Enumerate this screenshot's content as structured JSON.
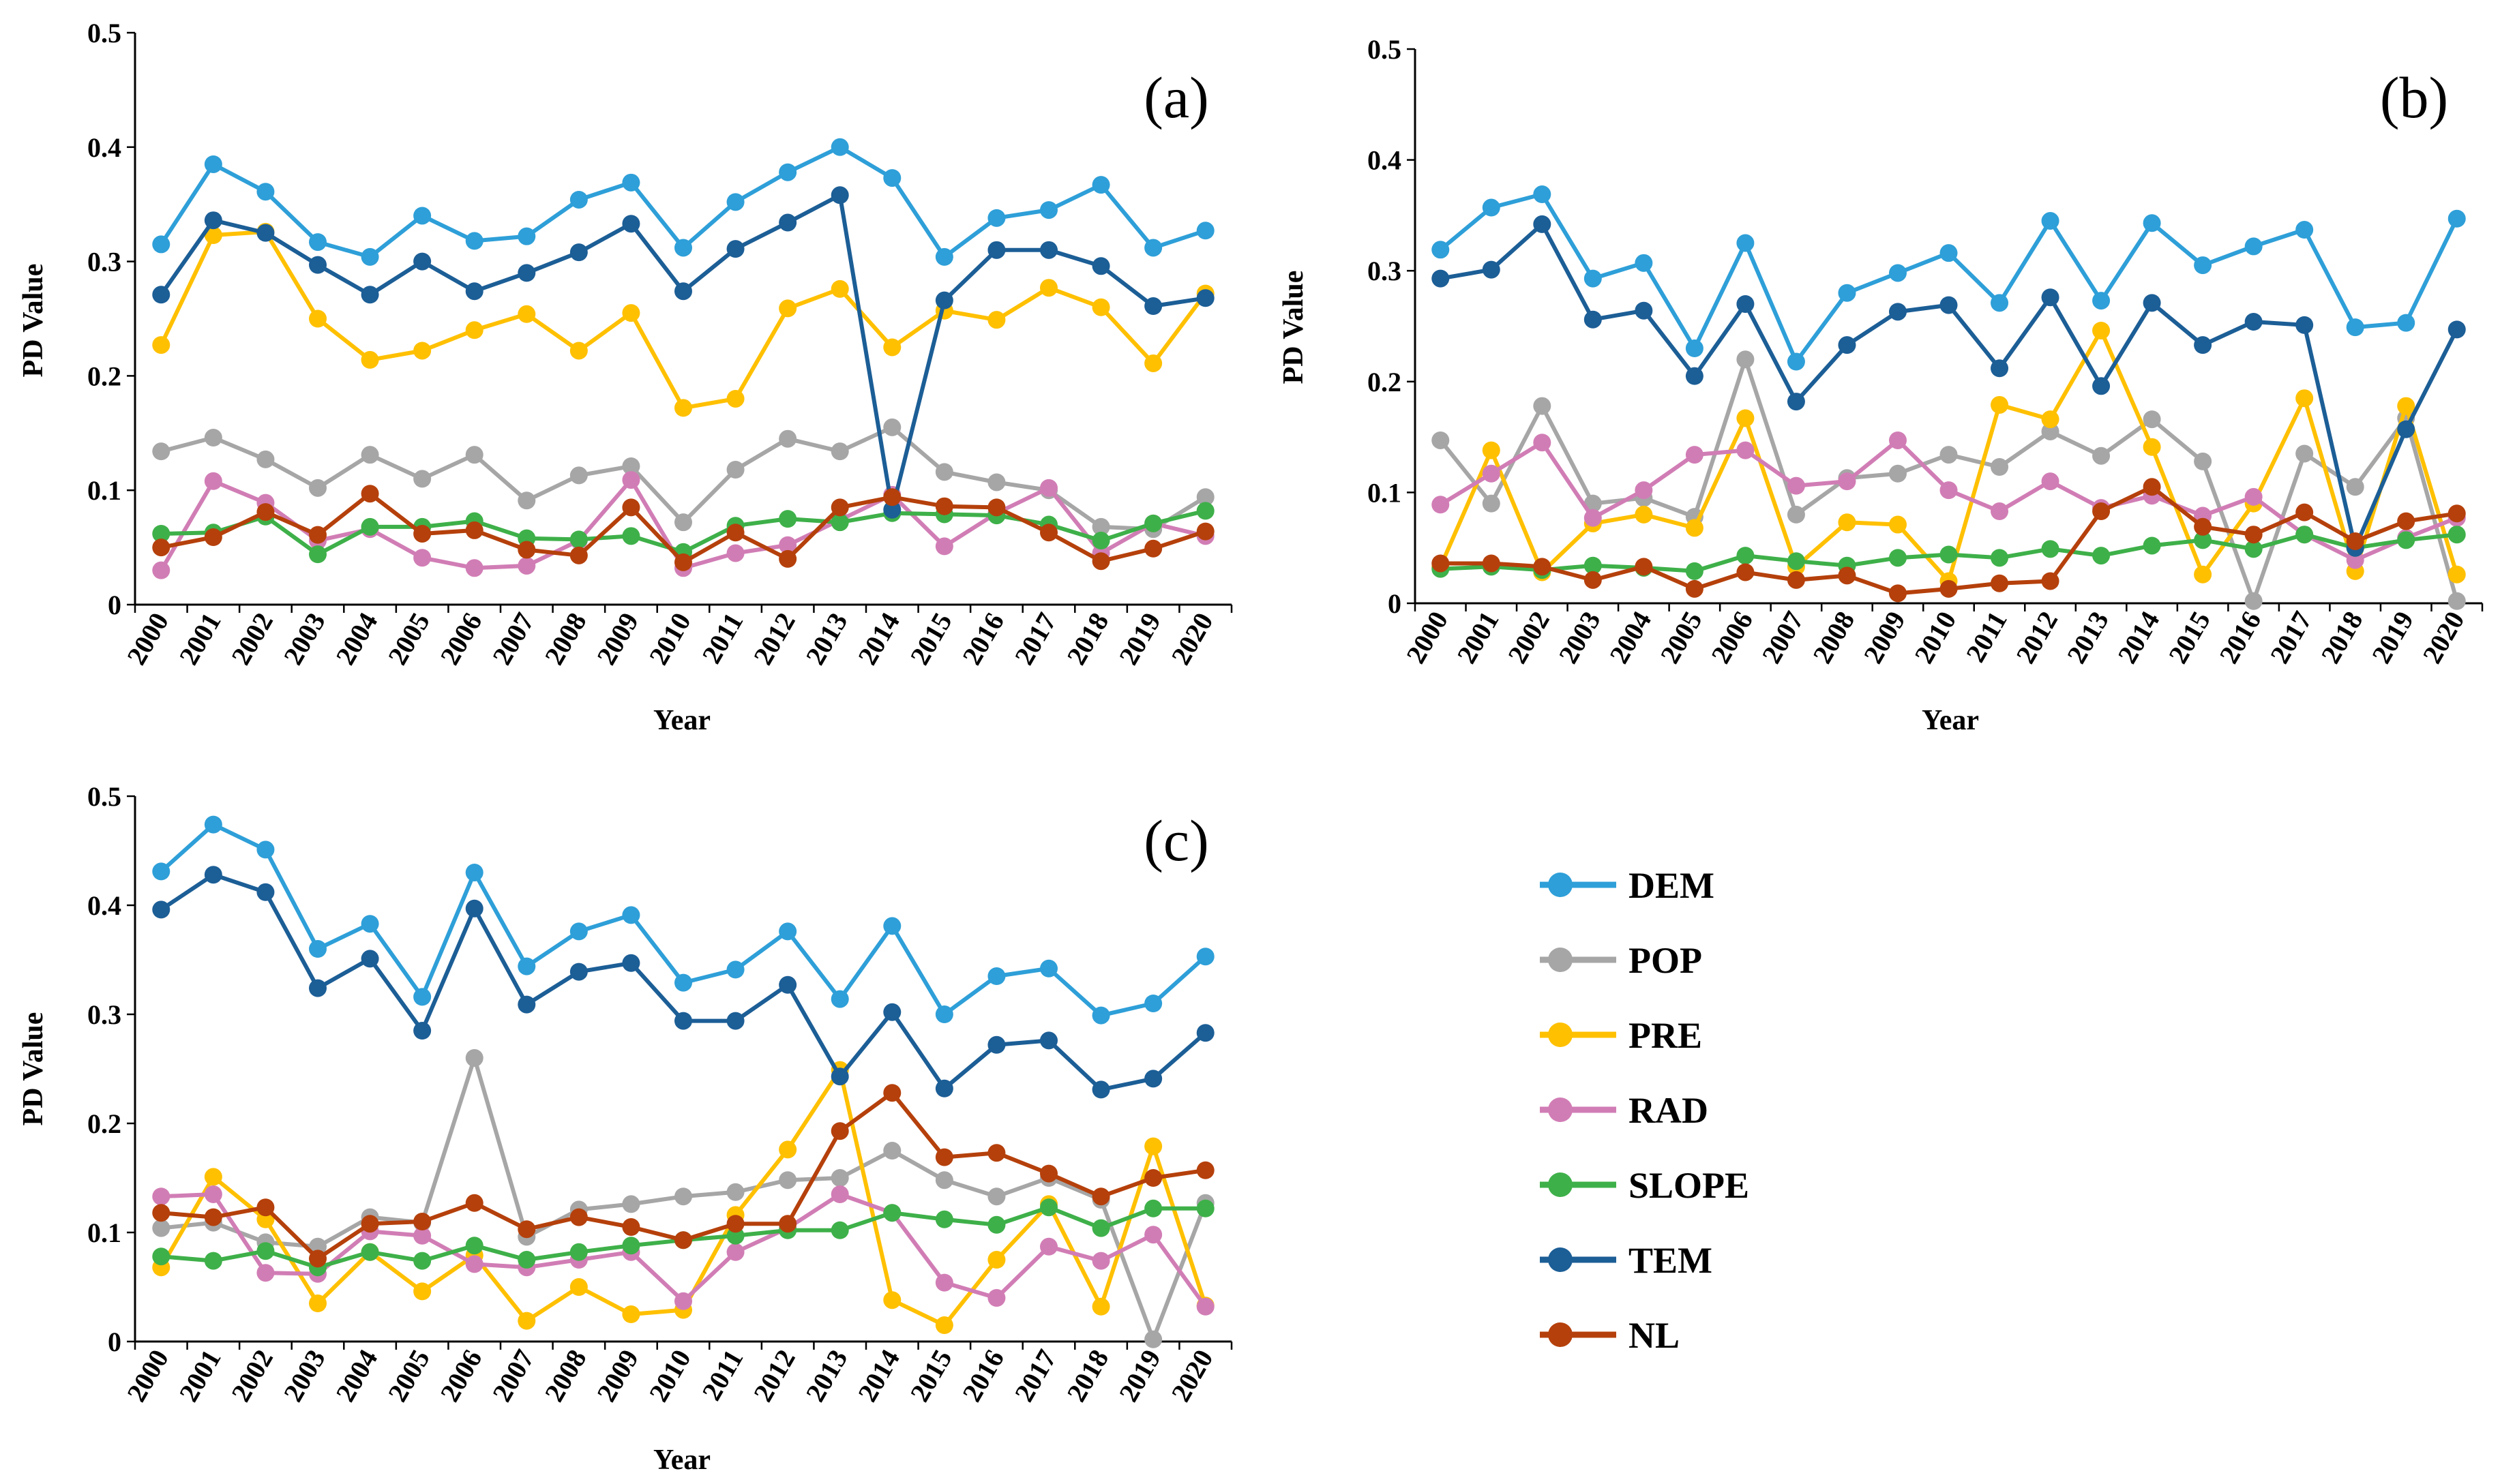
{
  "chart_data": [
    {
      "type": "line",
      "title": "(a)",
      "xlabel": "Year",
      "ylabel": "PD Value",
      "ylim": [
        0,
        0.5
      ],
      "yticks": [
        "0",
        "0.1",
        "0.2",
        "0.3",
        "0.4",
        "0.5"
      ],
      "categories": [
        "2000",
        "2001",
        "2002",
        "2003",
        "2004",
        "2005",
        "2006",
        "2007",
        "2008",
        "2009",
        "2010",
        "2011",
        "2012",
        "2013",
        "2014",
        "2015",
        "2016",
        "2017",
        "2018",
        "2019",
        "2020"
      ],
      "series": [
        {
          "name": "DEM",
          "color": "#2E9FD8",
          "values": [
            0.315,
            0.385,
            0.361,
            0.317,
            0.304,
            0.34,
            0.318,
            0.322,
            0.354,
            0.369,
            0.312,
            0.352,
            0.378,
            0.4,
            0.373,
            0.304,
            0.338,
            0.345,
            0.367,
            0.312,
            0.327
          ]
        },
        {
          "name": "POP",
          "color": "#A6A6A6",
          "values": [
            0.134,
            0.146,
            0.127,
            0.102,
            0.131,
            0.11,
            0.131,
            0.091,
            0.113,
            0.121,
            0.072,
            0.118,
            0.145,
            0.134,
            0.155,
            0.116,
            0.107,
            0.1,
            0.068,
            0.066,
            0.094
          ]
        },
        {
          "name": "PRE",
          "color": "#FFC000",
          "values": [
            0.227,
            0.323,
            0.326,
            0.25,
            0.214,
            0.222,
            0.24,
            0.254,
            0.222,
            0.255,
            0.172,
            0.18,
            0.259,
            0.276,
            0.225,
            0.257,
            0.249,
            0.277,
            0.26,
            0.211,
            0.272
          ]
        },
        {
          "name": "RAD",
          "color": "#D17DB5",
          "values": [
            0.03,
            0.108,
            0.089,
            0.056,
            0.066,
            0.041,
            0.032,
            0.034,
            0.056,
            0.109,
            0.032,
            0.045,
            0.052,
            0.074,
            0.096,
            0.051,
            0.08,
            0.102,
            0.045,
            0.071,
            0.06
          ]
        },
        {
          "name": "SLOPE",
          "color": "#3EB049",
          "values": [
            0.062,
            0.063,
            0.077,
            0.044,
            0.068,
            0.068,
            0.073,
            0.058,
            0.057,
            0.06,
            0.046,
            0.069,
            0.075,
            0.072,
            0.08,
            0.079,
            0.078,
            0.07,
            0.056,
            0.071,
            0.082
          ]
        },
        {
          "name": "TEM",
          "color": "#1C5E96",
          "values": [
            0.271,
            0.336,
            0.325,
            0.297,
            0.271,
            0.3,
            0.274,
            0.29,
            0.308,
            0.333,
            0.274,
            0.311,
            0.334,
            0.358,
            0.083,
            0.266,
            0.31,
            0.31,
            0.296,
            0.261,
            0.268
          ]
        },
        {
          "name": "NL",
          "color": "#B5400B",
          "values": [
            0.05,
            0.059,
            0.081,
            0.061,
            0.097,
            0.062,
            0.065,
            0.048,
            0.043,
            0.085,
            0.037,
            0.063,
            0.04,
            0.085,
            0.094,
            0.086,
            0.085,
            0.063,
            0.038,
            0.049,
            0.064
          ]
        }
      ]
    },
    {
      "type": "line",
      "title": "(b)",
      "xlabel": "Year",
      "ylabel": "PD Value",
      "ylim": [
        0,
        0.5
      ],
      "yticks": [
        "0",
        "0.1",
        "0.2",
        "0.3",
        "0.4",
        "0.5"
      ],
      "categories": [
        "2000",
        "2001",
        "2002",
        "2003",
        "2004",
        "2005",
        "2006",
        "2007",
        "2008",
        "2009",
        "2010",
        "2011",
        "2012",
        "2013",
        "2014",
        "2015",
        "2016",
        "2017",
        "2018",
        "2019",
        "2020"
      ],
      "series": [
        {
          "name": "DEM",
          "color": "#2E9FD8",
          "values": [
            0.319,
            0.357,
            0.369,
            0.293,
            0.307,
            0.23,
            0.325,
            0.218,
            0.28,
            0.298,
            0.316,
            0.271,
            0.345,
            0.273,
            0.343,
            0.305,
            0.322,
            0.337,
            0.249,
            0.253,
            0.347
          ]
        },
        {
          "name": "POP",
          "color": "#A6A6A6",
          "values": [
            0.147,
            0.09,
            0.178,
            0.09,
            0.095,
            0.078,
            0.22,
            0.08,
            0.113,
            0.117,
            0.134,
            0.123,
            0.155,
            0.133,
            0.166,
            0.128,
            0.002,
            0.135,
            0.105,
            0.167,
            0.002
          ]
        },
        {
          "name": "PRE",
          "color": "#FFC000",
          "values": [
            0.033,
            0.138,
            0.028,
            0.072,
            0.08,
            0.068,
            0.167,
            0.033,
            0.073,
            0.071,
            0.02,
            0.179,
            0.166,
            0.246,
            0.141,
            0.026,
            0.09,
            0.185,
            0.029,
            0.178,
            0.026
          ]
        },
        {
          "name": "RAD",
          "color": "#D17DB5",
          "values": [
            0.089,
            0.117,
            0.145,
            0.077,
            0.102,
            0.134,
            0.138,
            0.106,
            0.11,
            0.147,
            0.102,
            0.083,
            0.11,
            0.086,
            0.097,
            0.079,
            0.096,
            0.062,
            0.039,
            0.059,
            0.077
          ]
        },
        {
          "name": "SLOPE",
          "color": "#3EB049",
          "values": [
            0.031,
            0.033,
            0.03,
            0.034,
            0.032,
            0.029,
            0.043,
            0.038,
            0.034,
            0.041,
            0.044,
            0.041,
            0.049,
            0.043,
            0.052,
            0.057,
            0.049,
            0.062,
            0.05,
            0.057,
            0.062
          ]
        },
        {
          "name": "TEM",
          "color": "#1C5E96",
          "values": [
            0.293,
            0.301,
            0.342,
            0.256,
            0.264,
            0.205,
            0.27,
            0.182,
            0.233,
            0.263,
            0.269,
            0.212,
            0.276,
            0.196,
            0.271,
            0.233,
            0.254,
            0.251,
            0.05,
            0.157,
            0.247
          ]
        },
        {
          "name": "NL",
          "color": "#B5400B",
          "values": [
            0.036,
            0.036,
            0.033,
            0.021,
            0.033,
            0.013,
            0.028,
            0.021,
            0.025,
            0.009,
            0.013,
            0.018,
            0.02,
            0.083,
            0.105,
            0.069,
            0.062,
            0.082,
            0.056,
            0.074,
            0.081
          ]
        }
      ]
    },
    {
      "type": "line",
      "title": "(c)",
      "xlabel": "Year",
      "ylabel": "PD Value",
      "ylim": [
        0,
        0.5
      ],
      "yticks": [
        "0",
        "0.1",
        "0.2",
        "0.3",
        "0.4",
        "0.5"
      ],
      "categories": [
        "2000",
        "2001",
        "2002",
        "2003",
        "2004",
        "2005",
        "2006",
        "2007",
        "2008",
        "2009",
        "2010",
        "2011",
        "2012",
        "2013",
        "2014",
        "2015",
        "2016",
        "2017",
        "2018",
        "2019",
        "2020"
      ],
      "series": [
        {
          "name": "DEM",
          "color": "#2E9FD8",
          "values": [
            0.431,
            0.474,
            0.451,
            0.36,
            0.383,
            0.316,
            0.43,
            0.344,
            0.376,
            0.391,
            0.329,
            0.341,
            0.376,
            0.314,
            0.381,
            0.3,
            0.335,
            0.342,
            0.299,
            0.31,
            0.353
          ]
        },
        {
          "name": "POP",
          "color": "#A6A6A6",
          "values": [
            0.104,
            0.109,
            0.091,
            0.087,
            0.114,
            0.109,
            0.26,
            0.096,
            0.121,
            0.126,
            0.133,
            0.137,
            0.148,
            0.15,
            0.175,
            0.148,
            0.133,
            0.15,
            0.13,
            0.002,
            0.127
          ]
        },
        {
          "name": "PRE",
          "color": "#FFC000",
          "values": [
            0.068,
            0.151,
            0.112,
            0.035,
            0.082,
            0.046,
            0.079,
            0.019,
            0.05,
            0.025,
            0.029,
            0.116,
            0.176,
            0.249,
            0.038,
            0.015,
            0.075,
            0.126,
            0.032,
            0.179,
            0.033
          ]
        },
        {
          "name": "RAD",
          "color": "#D17DB5",
          "values": [
            0.133,
            0.135,
            0.063,
            0.062,
            0.101,
            0.097,
            0.071,
            0.068,
            0.075,
            0.082,
            0.037,
            0.082,
            0.104,
            0.135,
            0.118,
            0.054,
            0.04,
            0.087,
            0.074,
            0.098,
            0.032
          ]
        },
        {
          "name": "SLOPE",
          "color": "#3EB049",
          "values": [
            0.078,
            0.074,
            0.083,
            0.068,
            0.082,
            0.074,
            0.088,
            0.075,
            0.082,
            0.088,
            0.093,
            0.097,
            0.102,
            0.102,
            0.118,
            0.112,
            0.107,
            0.123,
            0.104,
            0.122,
            0.122
          ]
        },
        {
          "name": "TEM",
          "color": "#1C5E96",
          "values": [
            0.396,
            0.428,
            0.412,
            0.324,
            0.351,
            0.285,
            0.397,
            0.309,
            0.339,
            0.347,
            0.294,
            0.294,
            0.327,
            0.243,
            0.302,
            0.232,
            0.272,
            0.276,
            0.231,
            0.241,
            0.283
          ]
        },
        {
          "name": "NL",
          "color": "#B5400B",
          "values": [
            0.118,
            0.114,
            0.123,
            0.076,
            0.108,
            0.11,
            0.127,
            0.103,
            0.114,
            0.105,
            0.093,
            0.108,
            0.108,
            0.193,
            0.228,
            0.169,
            0.173,
            0.154,
            0.133,
            0.15,
            0.157
          ]
        }
      ]
    }
  ],
  "legend": [
    {
      "name": "DEM",
      "color": "#2E9FD8"
    },
    {
      "name": "POP",
      "color": "#A6A6A6"
    },
    {
      "name": "PRE",
      "color": "#FFC000"
    },
    {
      "name": "RAD",
      "color": "#D17DB5"
    },
    {
      "name": "SLOPE",
      "color": "#3EB049"
    },
    {
      "name": "TEM",
      "color": "#1C5E96"
    },
    {
      "name": "NL",
      "color": "#B5400B"
    }
  ]
}
